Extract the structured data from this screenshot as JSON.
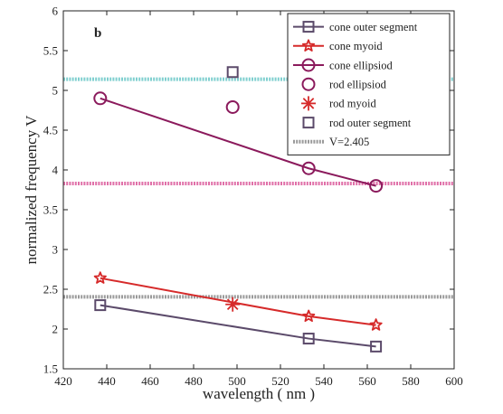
{
  "chart_data": {
    "type": "line",
    "panel_label": "b",
    "xlabel": "wavelength ( nm )",
    "ylabel": "normalized frequency V",
    "xlim": [
      420,
      600
    ],
    "ylim": [
      1.5,
      6
    ],
    "xticks": [
      420,
      440,
      460,
      480,
      500,
      520,
      540,
      560,
      580,
      600
    ],
    "yticks": [
      1.5,
      2,
      2.5,
      3,
      3.5,
      4,
      4.5,
      5,
      5.5,
      6
    ],
    "ytick_labels": [
      "1.5",
      "2",
      "2.5",
      "3",
      "3.5",
      "4",
      "4.5",
      "5",
      "5.5",
      "6"
    ],
    "grid": false,
    "legend_position": "top-right",
    "series": [
      {
        "name": "cone outer segment",
        "kind": "line",
        "marker": "square",
        "color": "#5b4a6a",
        "x": [
          437,
          533,
          564
        ],
        "y": [
          2.3,
          1.88,
          1.78
        ]
      },
      {
        "name": "cone myoid",
        "kind": "line",
        "marker": "star",
        "color": "#d62a2a",
        "x": [
          437,
          533,
          564
        ],
        "y": [
          2.64,
          2.16,
          2.05
        ]
      },
      {
        "name": "cone ellipsiod",
        "kind": "line",
        "marker": "circle",
        "color": "#8b1a5c",
        "x": [
          437,
          533,
          564
        ],
        "y": [
          4.9,
          4.02,
          3.8
        ]
      },
      {
        "name": "rod ellipsiod",
        "kind": "points",
        "marker": "circle",
        "color": "#8b1a5c",
        "x": [
          498
        ],
        "y": [
          4.79
        ]
      },
      {
        "name": "rod myoid",
        "kind": "points",
        "marker": "asterisk",
        "color": "#d62a2a",
        "x": [
          498
        ],
        "y": [
          2.31
        ]
      },
      {
        "name": "rod outer segment",
        "kind": "points",
        "marker": "square",
        "color": "#5b4a6a",
        "x": [
          498
        ],
        "y": [
          5.23
        ]
      },
      {
        "name": "V=2.405",
        "kind": "hline",
        "color": "#9a9a9a",
        "y": 2.405
      }
    ],
    "reference_lines_unlabeled": [
      {
        "y": 5.14,
        "color": "#7fcfcf"
      },
      {
        "y": 3.83,
        "color": "#e070a8"
      }
    ]
  }
}
